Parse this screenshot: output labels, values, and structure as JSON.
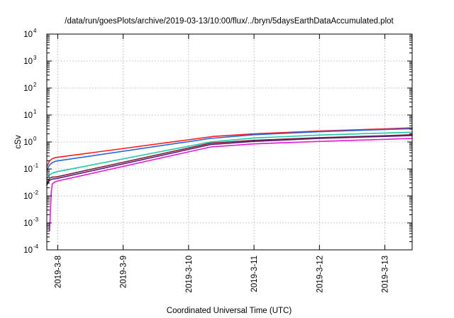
{
  "chart_data": {
    "type": "line",
    "title": "/data/run/goesPlots/archive/2019-03-13/10:00/flux/../bryn/5daysEarthDataAccumulated.plot",
    "xlabel": "Coordinated Universal Time (UTC)",
    "ylabel": "cSv",
    "y_scale": "log",
    "ylim": [
      0.0001,
      10000
    ],
    "y_ticks": [
      {
        "mantissa": "10",
        "exp": "-4"
      },
      {
        "mantissa": "10",
        "exp": "-3"
      },
      {
        "mantissa": "10",
        "exp": "-2"
      },
      {
        "mantissa": "10",
        "exp": "-1"
      },
      {
        "mantissa": "10",
        "exp": "0"
      },
      {
        "mantissa": "10",
        "exp": "1"
      },
      {
        "mantissa": "10",
        "exp": "2"
      },
      {
        "mantissa": "10",
        "exp": "3"
      },
      {
        "mantissa": "10",
        "exp": "4"
      }
    ],
    "xlim": [
      "2019-03-07 20:00",
      "2019-03-13 10:00"
    ],
    "x_ticks": [
      "2019-3-8",
      "2019-3-9",
      "2019-3-10",
      "2019-3-11",
      "2019-3-12",
      "2019-3-13"
    ],
    "grid": true,
    "legend": "none",
    "series": [
      {
        "color": "#ff1a1a",
        "x": [
          "2019-03-07 20:00",
          "2019-03-07 21:00",
          "2019-03-07 22:00",
          "2019-03-07 23:00",
          "2019-03-08 00:00",
          "2019-03-10 08:00",
          "2019-03-10 09:00",
          "2019-03-11 00:00",
          "2019-03-12 00:00",
          "2019-03-13 00:00",
          "2019-03-13 10:00"
        ],
        "values": [
          0.12,
          0.2,
          0.24,
          0.26,
          0.27,
          1.55,
          1.6,
          2.0,
          2.55,
          3.05,
          3.35
        ]
      },
      {
        "color": "#2266e0",
        "x": [
          "2019-03-07 20:00",
          "2019-03-07 21:00",
          "2019-03-07 22:00",
          "2019-03-07 23:00",
          "2019-03-08 00:00",
          "2019-03-10 08:00",
          "2019-03-11 00:00",
          "2019-03-12 00:00",
          "2019-03-13 00:00",
          "2019-03-13 10:00"
        ],
        "values": [
          0.09,
          0.14,
          0.17,
          0.19,
          0.2,
          1.35,
          1.85,
          2.4,
          2.9,
          3.1
        ]
      },
      {
        "color": "#20c8a8",
        "x": [
          "2019-03-07 20:00",
          "2019-03-07 21:00",
          "2019-03-07 22:00",
          "2019-03-07 23:00",
          "2019-03-08 00:00",
          "2019-03-10 08:00",
          "2019-03-11 00:00",
          "2019-03-12 00:00",
          "2019-03-13 00:00",
          "2019-03-13 10:00"
        ],
        "values": [
          0.04,
          0.06,
          0.07,
          0.075,
          0.08,
          1.0,
          1.4,
          1.8,
          2.15,
          2.3
        ]
      },
      {
        "color": "#8a1a3a",
        "x": [
          "2019-03-07 20:00",
          "2019-03-07 21:00",
          "2019-03-07 22:00",
          "2019-03-07 23:00",
          "2019-03-08 00:00",
          "2019-03-10 08:00",
          "2019-03-11 00:00",
          "2019-03-12 00:00",
          "2019-03-13 00:00",
          "2019-03-13 10:00"
        ],
        "values": [
          0.03,
          0.045,
          0.05,
          0.05,
          0.052,
          0.9,
          1.15,
          1.45,
          1.7,
          1.85
        ]
      },
      {
        "color": "#4a2478",
        "x": [
          "2019-03-07 20:00",
          "2019-03-07 21:00",
          "2019-03-07 22:00",
          "2019-03-07 23:00",
          "2019-03-08 00:00",
          "2019-03-10 08:00",
          "2019-03-11 00:00",
          "2019-03-12 00:00",
          "2019-03-13 00:00",
          "2019-03-13 10:00"
        ],
        "values": [
          0.025,
          0.038,
          0.042,
          0.043,
          0.045,
          0.8,
          1.05,
          1.35,
          1.6,
          1.72
        ]
      },
      {
        "color": "#e818d8",
        "x": [
          "2019-03-07 21:00",
          "2019-03-07 21:20",
          "2019-03-07 21:40",
          "2019-03-07 22:00",
          "2019-03-07 23:00",
          "2019-03-08 00:00",
          "2019-03-10 08:00",
          "2019-03-11 00:00",
          "2019-03-12 00:00",
          "2019-03-13 00:00",
          "2019-03-13 10:00"
        ],
        "values": [
          0.0005,
          0.003,
          0.015,
          0.028,
          0.033,
          0.036,
          0.65,
          0.85,
          1.05,
          1.25,
          1.35
        ]
      }
    ]
  }
}
